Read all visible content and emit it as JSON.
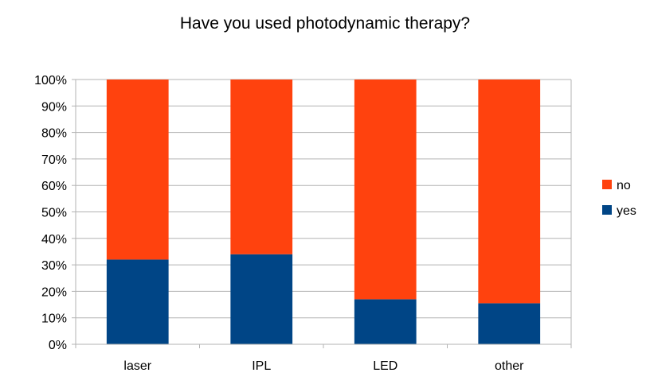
{
  "chart_data": {
    "type": "bar",
    "stacked": true,
    "title": "Have you used photodynamic therapy?",
    "xlabel": "",
    "ylabel": "",
    "categories": [
      "laser",
      "IPL",
      "LED",
      "other"
    ],
    "series": [
      {
        "name": "yes",
        "color": "#004586",
        "values": [
          32,
          34,
          17,
          15.5
        ]
      },
      {
        "name": "no",
        "color": "#ff420e",
        "values": [
          68,
          66,
          83,
          84.5
        ]
      }
    ],
    "ylim": [
      0,
      100
    ],
    "yticks": [
      "0%",
      "10%",
      "20%",
      "30%",
      "40%",
      "50%",
      "60%",
      "70%",
      "80%",
      "90%",
      "100%"
    ],
    "grid": true,
    "legend": {
      "position": "right",
      "entries": [
        "no",
        "yes"
      ]
    }
  }
}
